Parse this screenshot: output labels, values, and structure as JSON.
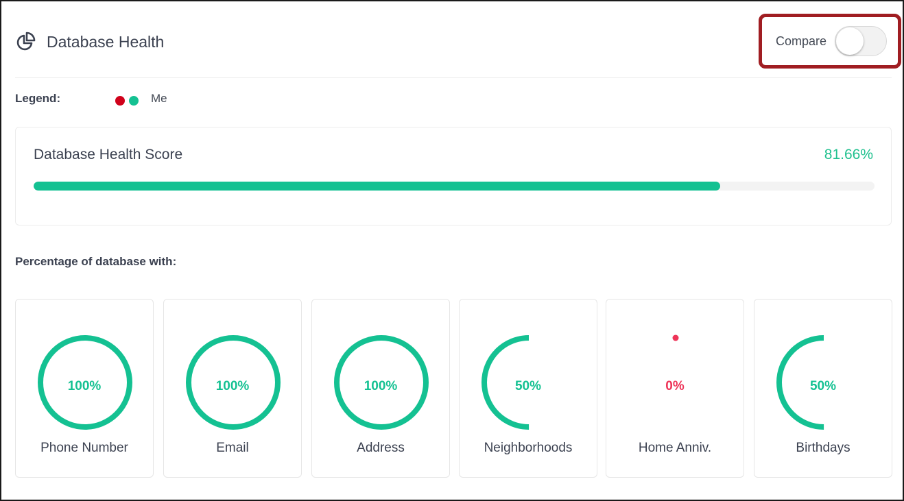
{
  "header": {
    "title": "Database Health",
    "icon": "pie-chart-icon"
  },
  "compare": {
    "label": "Compare",
    "enabled": false
  },
  "legend": {
    "label": "Legend:",
    "dot_colors": [
      "#d0021b",
      "#14c192"
    ],
    "series_name": "Me"
  },
  "score": {
    "title": "Database Health Score",
    "value_text": "81.66%",
    "value": 81.66,
    "color": "#14c192"
  },
  "section": {
    "label": "Percentage of database with:"
  },
  "colors": {
    "accent": "#14c192",
    "zero": "#ee3458"
  },
  "metrics": [
    {
      "label": "Phone Number",
      "value": 100,
      "display": "100%"
    },
    {
      "label": "Email",
      "value": 100,
      "display": "100%"
    },
    {
      "label": "Address",
      "value": 100,
      "display": "100%"
    },
    {
      "label": "Neighborhoods",
      "value": 50,
      "display": "50%"
    },
    {
      "label": "Home Anniv.",
      "value": 0,
      "display": "0%"
    },
    {
      "label": "Birthdays",
      "value": 50,
      "display": "50%"
    }
  ]
}
